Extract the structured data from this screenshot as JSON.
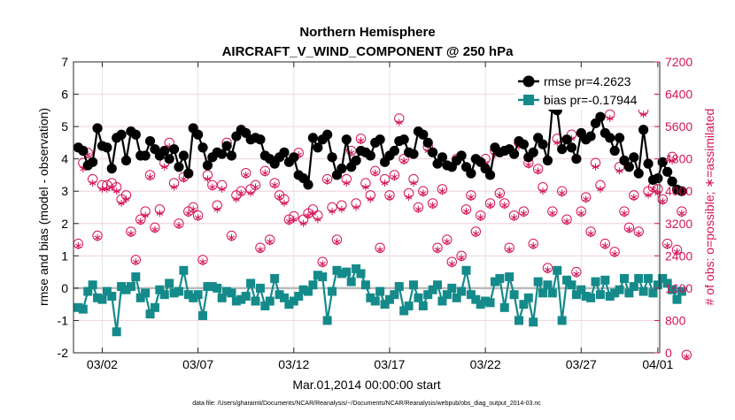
{
  "chart_data": {
    "type": "line",
    "title": "Northern Hemisphere",
    "subtitle": "AIRCRAFT_V_WIND_COMPONENT @ 250 hPa",
    "xlabel": "Mar.01,2014 00:00:00 start",
    "ylabel_left": "rmse and bias (model - observation)",
    "ylabel_right": "# of obs: o=possible; ∗=assimilated",
    "footnote": "data file: /Users/gharamti/Documents/NCAR/Reanalysis/~/Documents/NCAR/Reanalysis/webpub/obs_diag_output_2014-03.nc",
    "xlim": [
      0.5,
      31.1
    ],
    "ylim_left": [
      -2,
      7
    ],
    "ylim_right": [
      0,
      7200
    ],
    "x_ticks": [
      2,
      7,
      12,
      17,
      22,
      27,
      31
    ],
    "x_tick_labels": [
      "03/02",
      "03/07",
      "03/12",
      "03/17",
      "03/22",
      "03/27",
      "04/01"
    ],
    "y_ticks_left": [
      -2,
      -1,
      0,
      1,
      2,
      3,
      4,
      5,
      6,
      7
    ],
    "y_ticks_right": [
      0,
      800,
      1600,
      2400,
      3200,
      4000,
      4800,
      5600,
      6400,
      7200
    ],
    "y_tick_labels_left": [
      "-2",
      "-1",
      "0",
      "1",
      "2",
      "3",
      "4",
      "5",
      "6",
      "7"
    ],
    "y_tick_labels_right": [
      "0",
      "800",
      "1600",
      "2400",
      "3200",
      "4000",
      "4800",
      "5600",
      "6400",
      "7200"
    ],
    "grid": true,
    "legend_position": "top-right",
    "zero_line": 0,
    "x_start": 0.75,
    "x_step": 0.25,
    "series": [
      {
        "name": "rmse",
        "legend": "rmse pr=4.2623",
        "color": "#000000",
        "marker": "circle",
        "values": [
          4.35,
          4.25,
          3.8,
          3.9,
          4.95,
          4.4,
          4.35,
          3.7,
          4.65,
          4.75,
          3.95,
          4.85,
          4.75,
          4.1,
          4.1,
          4.55,
          4.3,
          4.1,
          4.25,
          4.0,
          4.3,
          3.75,
          4.1,
          3.55,
          4.95,
          4.75,
          4.35,
          3.8,
          4.05,
          4.2,
          4.15,
          4.4,
          4.1,
          4.7,
          4.9,
          4.8,
          4.6,
          4.65,
          4.6,
          4.1,
          4.0,
          3.85,
          4.05,
          4.2,
          3.9,
          4.05,
          3.5,
          3.4,
          3.2,
          4.65,
          4.35,
          4.6,
          4.75,
          4.05,
          3.5,
          3.7,
          4.6,
          3.75,
          3.95,
          4.25,
          4.2,
          4.1,
          4.5,
          4.6,
          3.9,
          4.1,
          4.25,
          4.55,
          4.6,
          4.2,
          4.15,
          4.85,
          4.75,
          4.5,
          4.2,
          3.85,
          4.05,
          3.8,
          3.75,
          3.95,
          4.1,
          3.75,
          3.55,
          4.0,
          3.9,
          3.7,
          3.5,
          4.35,
          4.2,
          4.25,
          4.3,
          4.15,
          4.55,
          4.45,
          4.05,
          4.2,
          4.65,
          4.45,
          3.95,
          5.6,
          5.5,
          4.3,
          4.6,
          4.35,
          4.0,
          4.8,
          4.6,
          4.7,
          5.1,
          5.3,
          4.8,
          4.65,
          4.25,
          4.65,
          3.95,
          3.75,
          4.05,
          3.55,
          4.9,
          3.85,
          3.35,
          3.4,
          3.9,
          3.6,
          3.3,
          3.05,
          3.0
        ]
      },
      {
        "name": "bias",
        "legend": "bias pr=-0.17944",
        "color": "#158a8a",
        "marker": "square",
        "values": [
          -0.6,
          -0.65,
          -0.1,
          0.1,
          -0.3,
          -0.35,
          -0.1,
          -0.25,
          -1.35,
          0.05,
          -0.05,
          0.05,
          0.35,
          -0.3,
          -0.15,
          -0.8,
          -0.6,
          -0.05,
          -0.2,
          0.15,
          -0.15,
          -0.1,
          0.55,
          -0.2,
          -0.3,
          -0.2,
          -0.85,
          0.05,
          0.05,
          0.0,
          -0.3,
          -0.1,
          -0.15,
          -0.4,
          -0.35,
          -0.25,
          0.15,
          -0.4,
          0.0,
          -0.55,
          -0.4,
          0.3,
          -0.2,
          -0.3,
          -0.5,
          -0.4,
          -0.25,
          -0.05,
          -0.1,
          0.1,
          0.4,
          0.35,
          -1.0,
          -0.1,
          0.55,
          0.45,
          0.5,
          0.2,
          0.6,
          0.45,
          0.1,
          -0.3,
          -0.4,
          -0.1,
          -0.5,
          -0.35,
          -0.2,
          0.05,
          -0.7,
          -0.55,
          0.1,
          -0.3,
          -0.55,
          -0.2,
          -0.05,
          0.1,
          -0.4,
          -0.2,
          0.0,
          -0.3,
          -0.1,
          0.55,
          -0.2,
          -0.35,
          -0.5,
          -0.4,
          -0.45,
          0.2,
          0.3,
          -0.6,
          0.35,
          -0.2,
          -1.0,
          -0.5,
          -0.3,
          -1.05,
          0.2,
          -0.15,
          0.1,
          -0.15,
          0.55,
          -1.0,
          0.25,
          0.1,
          -0.2,
          -0.05,
          -0.25,
          -0.3,
          0.2,
          -0.2,
          0.25,
          -0.25,
          -0.15,
          -0.05,
          0.3,
          -0.15,
          0.05,
          0.3,
          -0.1,
          0.3,
          -0.15,
          0.1,
          0.3,
          0.15,
          -0.05,
          -0.35,
          -0.1
        ]
      },
      {
        "name": "possible obs",
        "color": "#d4145a",
        "marker": "circle-open",
        "axis": "right",
        "values": [
          2700,
          4700,
          4950,
          4300,
          2900,
          4150,
          4150,
          4200,
          4100,
          3800,
          3900,
          3000,
          2300,
          3300,
          3500,
          4400,
          3100,
          3550,
          4700,
          5200,
          4200,
          3200,
          4350,
          3500,
          3600,
          3400,
          2300,
          4400,
          4150,
          3650,
          4150,
          5200,
          2900,
          3900,
          4000,
          4450,
          4050,
          4150,
          2600,
          4500,
          2800,
          4200,
          3900,
          3800,
          3300,
          3380,
          4950,
          3300,
          3450,
          3550,
          3400,
          2250,
          4300,
          3600,
          2800,
          3650,
          4300,
          5000,
          3700,
          5300,
          4200,
          3900,
          4500,
          2600,
          4300,
          3900,
          4400,
          5800,
          4800,
          3950,
          4300,
          3600,
          4000,
          5100,
          3700,
          2600,
          4050,
          2800,
          2250,
          4800,
          2400,
          3550,
          3900,
          3000,
          3400,
          4800,
          3700,
          5000,
          3950,
          3700,
          2600,
          3400,
          5200,
          3500,
          4700,
          2700,
          4550,
          4100,
          2100,
          3500,
          5300,
          4000,
          3300,
          5400,
          2000,
          3500,
          3850,
          3000,
          4700,
          4150,
          2700,
          5900,
          2500,
          4600,
          3500,
          3100,
          3900,
          3000,
          6000,
          4000,
          4100,
          4050,
          3800,
          2700,
          4850,
          2550,
          3500,
          -50
        ]
      },
      {
        "name": "assimilated obs",
        "color": "#d4145a",
        "marker": "asterisk",
        "axis": "right",
        "values": [
          2650,
          4550,
          4900,
          4200,
          2850,
          4050,
          4050,
          4100,
          4000,
          3700,
          3800,
          2950,
          2250,
          3250,
          3400,
          4350,
          3050,
          3450,
          4600,
          5100,
          4100,
          3150,
          4300,
          3450,
          3550,
          3350,
          2250,
          4300,
          4100,
          3550,
          4050,
          5100,
          2850,
          3800,
          3950,
          4400,
          3950,
          4100,
          2550,
          4450,
          2750,
          4150,
          3850,
          3700,
          3250,
          3300,
          4900,
          3200,
          3400,
          3450,
          3300,
          2200,
          4250,
          3500,
          2750,
          3550,
          4200,
          4950,
          3600,
          5250,
          4100,
          3800,
          4450,
          2550,
          4200,
          3850,
          4350,
          5700,
          4750,
          3850,
          4200,
          3550,
          3950,
          5000,
          3650,
          2550,
          4000,
          2750,
          2200,
          4700,
          2350,
          3500,
          3850,
          2950,
          3350,
          4700,
          3650,
          4900,
          3900,
          3650,
          2550,
          3350,
          5100,
          3450,
          4650,
          2650,
          4500,
          4000,
          2050,
          3450,
          5200,
          3950,
          3250,
          5300,
          1950,
          3450,
          3800,
          2950,
          4600,
          4050,
          2650,
          5800,
          2450,
          4500,
          3450,
          3050,
          3850,
          2950,
          5900,
          3900,
          4050,
          3950,
          3750,
          2650,
          4750,
          2500,
          3450,
          -100
        ]
      }
    ]
  }
}
